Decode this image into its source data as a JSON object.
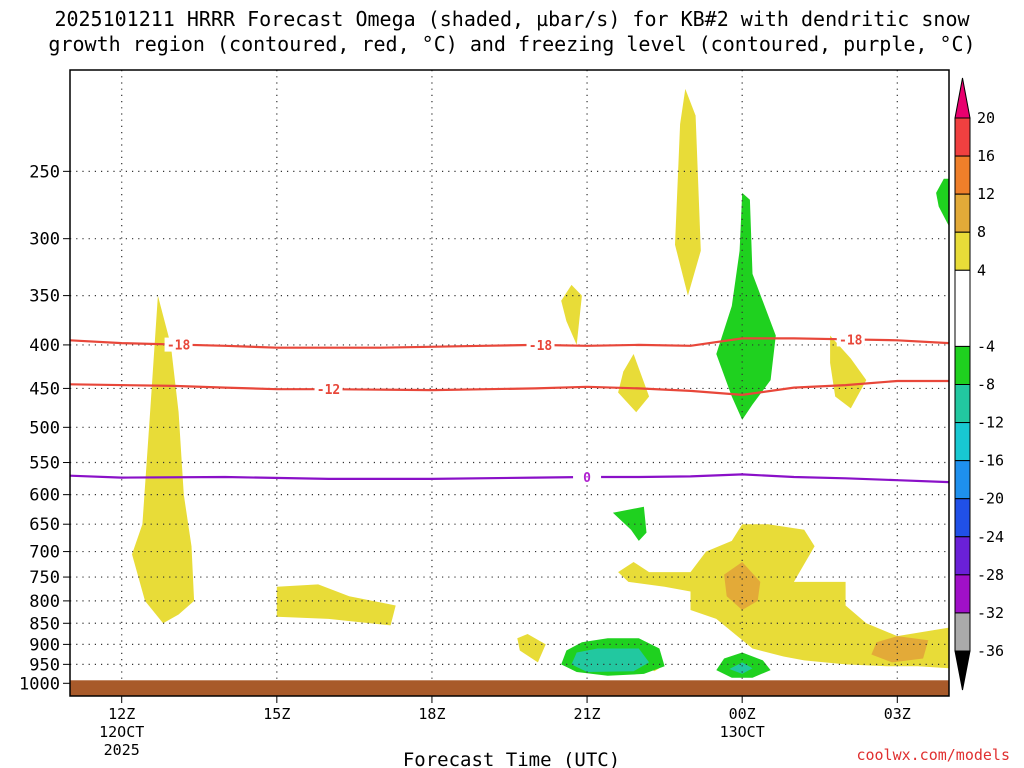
{
  "chart_data": {
    "type": "heatmap",
    "title": {
      "line1": "2025101211 HRRR Forecast Omega (shaded, µbar/s) for KB#2 with dendritic snow",
      "line2": "growth region (contoured, red, °C) and freezing level (contoured, purple, °C)"
    },
    "xlabel": "Forecast Time (UTC)",
    "xlim_hours_utc_from_12z_12oct": [
      -1,
      16
    ],
    "x_ticks": [
      {
        "hour": 0,
        "label": "12Z",
        "sublabel": "12OCT",
        "sublabel2": "2025"
      },
      {
        "hour": 3,
        "label": "15Z"
      },
      {
        "hour": 6,
        "label": "18Z"
      },
      {
        "hour": 9,
        "label": "21Z"
      },
      {
        "hour": 12,
        "label": "00Z",
        "sublabel": "13OCT"
      },
      {
        "hour": 15,
        "label": "03Z"
      }
    ],
    "ylabel": "",
    "y_scale": "log",
    "ylim_hpa": [
      1035,
      190
    ],
    "y_ticks": [
      250,
      300,
      350,
      400,
      450,
      500,
      550,
      600,
      650,
      700,
      750,
      800,
      850,
      900,
      950,
      1000
    ],
    "grid": true,
    "colorbar": {
      "labels": [
        "20",
        "16",
        "12",
        "8",
        "4",
        "-4",
        "-8",
        "-12",
        "-16",
        "-20",
        "-24",
        "-28",
        "-32",
        "-36"
      ],
      "bands": [
        {
          "from": 20,
          "to": 24,
          "color": "#e8006e"
        },
        {
          "from": 16,
          "to": 20,
          "color": "#f04040"
        },
        {
          "from": 12,
          "to": 16,
          "color": "#ef7f2a"
        },
        {
          "from": 8,
          "to": 12,
          "color": "#e3aa38"
        },
        {
          "from": 4,
          "to": 8,
          "color": "#e8dc38"
        },
        {
          "from": -4,
          "to": 4,
          "color": "#ffffff"
        },
        {
          "from": -8,
          "to": -4,
          "color": "#1fd11f"
        },
        {
          "from": -12,
          "to": -8,
          "color": "#22c8a0"
        },
        {
          "from": -16,
          "to": -12,
          "color": "#18c8d2"
        },
        {
          "from": -20,
          "to": -16,
          "color": "#1e90ee"
        },
        {
          "from": -24,
          "to": -20,
          "color": "#2050e8"
        },
        {
          "from": -28,
          "to": -24,
          "color": "#6a20d8"
        },
        {
          "from": -32,
          "to": -28,
          "color": "#a010c8"
        },
        {
          "from": -36,
          "to": -32,
          "color": "#aaaaaa"
        },
        {
          "from": -40,
          "to": -36,
          "color": "#000000"
        }
      ]
    },
    "omega_regions": [
      {
        "omega": 4,
        "color": "#e8dc38",
        "points": [
          [
            0.7,
            350
          ],
          [
            0.95,
            400
          ],
          [
            1.1,
            480
          ],
          [
            1.2,
            600
          ],
          [
            1.35,
            690
          ],
          [
            1.4,
            800
          ],
          [
            1.1,
            830
          ],
          [
            0.8,
            850
          ],
          [
            0.45,
            800
          ],
          [
            0.2,
            705
          ],
          [
            0.4,
            650
          ],
          [
            0.55,
            480
          ]
        ]
      },
      {
        "omega": 4,
        "color": "#e8dc38",
        "points": [
          [
            3.0,
            770
          ],
          [
            3.8,
            765
          ],
          [
            4.4,
            790
          ],
          [
            5.3,
            810
          ],
          [
            5.2,
            855
          ],
          [
            4.8,
            850
          ],
          [
            4.0,
            840
          ],
          [
            3.0,
            835
          ]
        ]
      },
      {
        "omega": 4,
        "color": "#e8dc38",
        "points": [
          [
            8.7,
            340
          ],
          [
            8.9,
            350
          ],
          [
            8.8,
            400
          ],
          [
            8.6,
            375
          ],
          [
            8.5,
            355
          ]
        ]
      },
      {
        "omega": 4,
        "color": "#e8dc38",
        "points": [
          [
            10.9,
            200
          ],
          [
            11.1,
            215
          ],
          [
            11.2,
            310
          ],
          [
            10.95,
            350
          ],
          [
            10.7,
            305
          ],
          [
            10.8,
            220
          ]
        ]
      },
      {
        "omega": 4,
        "color": "#e8dc38",
        "points": [
          [
            9.9,
            410
          ],
          [
            10.2,
            460
          ],
          [
            9.95,
            480
          ],
          [
            9.6,
            455
          ],
          [
            9.7,
            430
          ]
        ]
      },
      {
        "omega": 4,
        "color": "#e8dc38",
        "points": [
          [
            13.7,
            390
          ],
          [
            14.1,
            415
          ],
          [
            14.4,
            440
          ],
          [
            14.1,
            475
          ],
          [
            13.8,
            460
          ],
          [
            13.7,
            420
          ]
        ]
      },
      {
        "omega": 4,
        "color": "#e8dc38",
        "points": [
          [
            7.85,
            875
          ],
          [
            8.2,
            900
          ],
          [
            8.05,
            945
          ],
          [
            7.7,
            915
          ],
          [
            7.65,
            885
          ]
        ]
      },
      {
        "omega": 4,
        "color": "#e8dc38",
        "points": [
          [
            10.3,
            950
          ],
          [
            10.4,
            960
          ],
          [
            10.3,
            968
          ],
          [
            10.2,
            960
          ]
        ]
      },
      {
        "omega": 4,
        "color": "#e8dc38",
        "points": [
          [
            12.0,
            650
          ],
          [
            12.5,
            650
          ],
          [
            13.2,
            660
          ],
          [
            13.4,
            690
          ],
          [
            13.0,
            760
          ],
          [
            14.0,
            760
          ],
          [
            14.0,
            810
          ],
          [
            14.4,
            850
          ],
          [
            15.0,
            880
          ],
          [
            15.5,
            870
          ],
          [
            16.0,
            860
          ],
          [
            16.0,
            960
          ],
          [
            15.4,
            955
          ],
          [
            14.8,
            955
          ],
          [
            14.0,
            950
          ],
          [
            13.2,
            940
          ],
          [
            12.8,
            930
          ],
          [
            12.2,
            910
          ],
          [
            11.5,
            840
          ],
          [
            11.0,
            820
          ],
          [
            11.0,
            780
          ],
          [
            10.5,
            770
          ],
          [
            9.8,
            760
          ],
          [
            9.6,
            740
          ],
          [
            9.9,
            720
          ],
          [
            10.2,
            740
          ],
          [
            11.0,
            740
          ],
          [
            11.3,
            700
          ],
          [
            11.8,
            680
          ]
        ]
      },
      {
        "omega": 8,
        "color": "#e3aa38",
        "points": [
          [
            12.0,
            720
          ],
          [
            12.35,
            760
          ],
          [
            12.3,
            800
          ],
          [
            12.0,
            820
          ],
          [
            11.7,
            790
          ],
          [
            11.65,
            745
          ]
        ]
      },
      {
        "omega": 8,
        "color": "#e3aa38",
        "points": [
          [
            15.0,
            880
          ],
          [
            15.6,
            890
          ],
          [
            15.5,
            935
          ],
          [
            14.9,
            945
          ],
          [
            14.5,
            925
          ],
          [
            14.6,
            895
          ]
        ]
      },
      {
        "omega": -4,
        "color": "#1fd11f",
        "points": [
          [
            15.9,
            255
          ],
          [
            16.0,
            255
          ],
          [
            16.0,
            290
          ],
          [
            15.8,
            275
          ],
          [
            15.75,
            265
          ]
        ]
      },
      {
        "omega": -4,
        "color": "#1fd11f",
        "points": [
          [
            12.0,
            265
          ],
          [
            12.15,
            270
          ],
          [
            12.2,
            330
          ],
          [
            12.65,
            390
          ],
          [
            12.55,
            440
          ],
          [
            12.2,
            470
          ],
          [
            12.0,
            490
          ],
          [
            11.8,
            460
          ],
          [
            11.5,
            410
          ],
          [
            11.8,
            360
          ],
          [
            11.95,
            310
          ]
        ]
      },
      {
        "omega": -4,
        "color": "#1fd11f",
        "points": [
          [
            9.5,
            630
          ],
          [
            10.1,
            620
          ],
          [
            10.15,
            665
          ],
          [
            10.0,
            680
          ],
          [
            9.85,
            660
          ]
        ]
      },
      {
        "omega": -4,
        "color": "#1fd11f",
        "points": [
          [
            9.4,
            885
          ],
          [
            10.0,
            885
          ],
          [
            10.4,
            910
          ],
          [
            10.5,
            955
          ],
          [
            10.1,
            975
          ],
          [
            9.4,
            980
          ],
          [
            8.8,
            970
          ],
          [
            8.5,
            950
          ],
          [
            8.6,
            915
          ],
          [
            8.9,
            895
          ]
        ]
      },
      {
        "omega": -4,
        "color": "#1fd11f",
        "points": [
          [
            12.0,
            920
          ],
          [
            12.4,
            940
          ],
          [
            12.55,
            965
          ],
          [
            12.2,
            985
          ],
          [
            11.8,
            985
          ],
          [
            11.5,
            965
          ],
          [
            11.65,
            935
          ]
        ]
      },
      {
        "omega": -8,
        "color": "#22c8a0",
        "points": [
          [
            9.2,
            910
          ],
          [
            10.0,
            910
          ],
          [
            10.2,
            945
          ],
          [
            9.9,
            968
          ],
          [
            9.0,
            970
          ],
          [
            8.7,
            950
          ],
          [
            8.8,
            920
          ]
        ]
      },
      {
        "omega": -8,
        "color": "#22c8a0",
        "points": [
          [
            12.0,
            945
          ],
          [
            12.2,
            960
          ],
          [
            12.0,
            975
          ],
          [
            11.75,
            962
          ]
        ]
      }
    ],
    "dgz_isotherms": [
      {
        "label": "-18",
        "label_at_hours": [
          1.1,
          8.1,
          14.1
        ],
        "points": [
          [
            -1,
            395
          ],
          [
            0,
            398
          ],
          [
            2,
            401
          ],
          [
            3,
            403
          ],
          [
            5,
            403
          ],
          [
            7,
            401
          ],
          [
            8,
            400
          ],
          [
            9,
            401
          ],
          [
            10,
            400
          ],
          [
            11,
            401
          ],
          [
            12,
            393
          ],
          [
            13,
            393
          ],
          [
            14,
            394
          ],
          [
            15,
            395
          ],
          [
            16,
            398
          ]
        ]
      },
      {
        "label": "-12",
        "label_at_hours": [
          4.0
        ],
        "points": [
          [
            -1,
            445
          ],
          [
            1,
            447
          ],
          [
            2,
            449
          ],
          [
            3,
            451
          ],
          [
            4,
            451
          ],
          [
            6,
            452
          ],
          [
            8,
            450
          ],
          [
            9,
            448
          ],
          [
            10,
            450
          ],
          [
            11,
            453
          ],
          [
            12,
            458
          ],
          [
            13,
            449
          ],
          [
            14,
            446
          ],
          [
            15,
            441
          ],
          [
            16,
            441
          ]
        ]
      }
    ],
    "freezing_level": {
      "label": "0",
      "label_at_hours": [
        9.0
      ],
      "points": [
        [
          -1,
          570
        ],
        [
          0,
          573
        ],
        [
          2,
          572
        ],
        [
          4,
          575
        ],
        [
          6,
          575
        ],
        [
          8,
          573
        ],
        [
          9,
          572
        ],
        [
          10,
          572
        ],
        [
          11,
          571
        ],
        [
          12,
          568
        ],
        [
          13,
          572
        ],
        [
          14,
          574
        ],
        [
          15,
          577
        ],
        [
          16,
          580
        ]
      ]
    },
    "ground_hpa": 1000
  },
  "footer": {
    "credit": "coolwx.com/models"
  }
}
